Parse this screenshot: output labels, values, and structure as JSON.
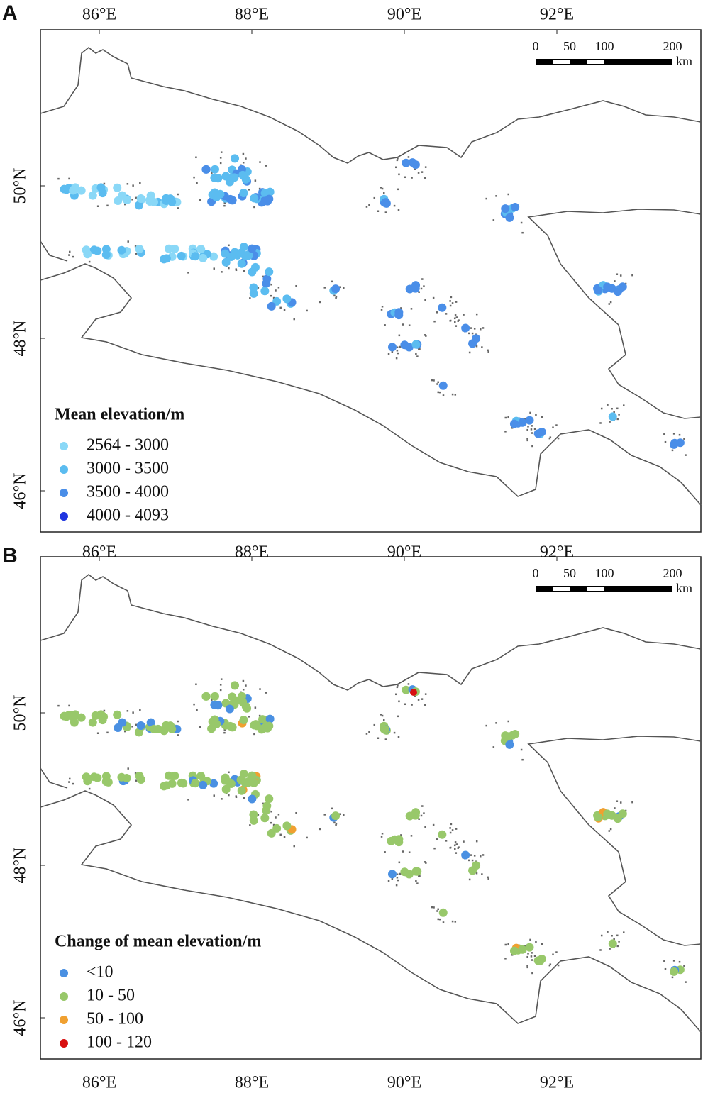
{
  "panels": [
    {
      "label": "A",
      "x_ticks": [
        "86°E",
        "88°E",
        "90°E",
        "92°E"
      ],
      "y_ticks": [
        "50°N",
        "48°N",
        "46°N"
      ],
      "scale_bar": {
        "ticks": [
          "0",
          "50",
          "100",
          "200"
        ],
        "unit": "km"
      },
      "legend": {
        "title": "Mean elevation/m",
        "items": [
          {
            "label": "2564 - 3000",
            "color": "#8ad8f7"
          },
          {
            "label": "3000 - 3500",
            "color": "#5bbcf0"
          },
          {
            "label": "3500 - 4000",
            "color": "#4a8ee8"
          },
          {
            "label": "4000 - 4093",
            "color": "#1f35e0"
          }
        ]
      }
    },
    {
      "label": "B",
      "x_ticks": [
        "86°E",
        "88°E",
        "90°E",
        "92°E"
      ],
      "x_ticks_bottom": [
        "86°E",
        "88°E",
        "90°E",
        "92°E"
      ],
      "y_ticks": [
        "50°N",
        "48°N",
        "46°N"
      ],
      "scale_bar": {
        "ticks": [
          "0",
          "50",
          "100",
          "200"
        ],
        "unit": "km"
      },
      "legend": {
        "title": "Change of mean elevation/m",
        "items": [
          {
            "label": "<10",
            "color": "#4a90e2"
          },
          {
            "label": "10 - 50",
            "color": "#98c86a"
          },
          {
            "label": "50 - 100",
            "color": "#f0a030"
          },
          {
            "label": "100 - 120",
            "color": "#d81010"
          }
        ]
      }
    }
  ]
}
